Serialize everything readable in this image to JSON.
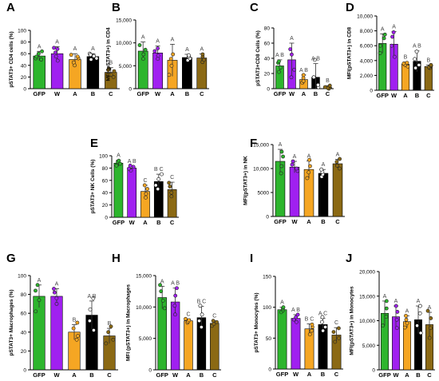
{
  "figure": {
    "colors": {
      "GFP": "#2db52d",
      "W": "#a020f0",
      "A": "#f5a623",
      "B": "#000000",
      "C": "#8b6914",
      "axis": "#000000",
      "letter": "#444444"
    }
  },
  "chart_data": [
    {
      "id": "A",
      "panel_label": "A",
      "type": "bar",
      "ylabel": "pSTAT3+ CD4 cells (%)",
      "ylim": [
        0,
        100
      ],
      "yticks": [
        0,
        20,
        40,
        60,
        80,
        100
      ],
      "ytick_labels": [
        "0",
        "20",
        "40",
        "60",
        "80",
        "100"
      ],
      "categories": [
        "GFP",
        "W",
        "A",
        "B",
        "C"
      ],
      "values": [
        56,
        60,
        50,
        55,
        28
      ],
      "errors": [
        8,
        12,
        10,
        5,
        8
      ],
      "points": [
        [
          50,
          52,
          60,
          64,
          55
        ],
        [
          48,
          55,
          62,
          68,
          70
        ],
        [
          40,
          45,
          52,
          58,
          55
        ],
        [
          50,
          52,
          56,
          60,
          58
        ],
        [
          20,
          24,
          30,
          34,
          32
        ]
      ],
      "sig": [
        "A",
        "A",
        "A",
        "A",
        "B"
      ]
    },
    {
      "id": "B",
      "panel_label": "B",
      "type": "bar",
      "ylabel": "MFI (pSTAT3+) in CD4",
      "ylim": [
        0,
        15000
      ],
      "yticks": [
        0,
        5000,
        10000,
        15000
      ],
      "ytick_labels": [
        "0",
        "5,000",
        "10,000",
        "15,000"
      ],
      "categories": [
        "GFP",
        "W",
        "A",
        "B",
        "C"
      ],
      "values": [
        8200,
        7800,
        6200,
        6800,
        6700
      ],
      "errors": [
        2000,
        1500,
        3500,
        700,
        900
      ],
      "points": [
        [
          6500,
          7500,
          8500,
          9500
        ],
        [
          6500,
          7200,
          8200,
          8800
        ],
        [
          3000,
          5000,
          6500,
          7500
        ],
        [
          6200,
          6600,
          7000,
          7300
        ],
        [
          5800,
          6300,
          7000,
          7500
        ]
      ],
      "sig": [
        "A",
        "A",
        "A",
        "A",
        "A"
      ]
    },
    {
      "id": "C",
      "panel_label": "C",
      "type": "bar",
      "ylabel": "pSTAT3+CD8 Cells (%)",
      "ylim": [
        0,
        80
      ],
      "yticks": [
        0,
        20,
        40,
        60,
        80
      ],
      "ytick_labels": [
        "0",
        "20",
        "40",
        "60",
        "80"
      ],
      "categories": [
        "GFP",
        "W",
        "A",
        "B",
        "C"
      ],
      "values": [
        30,
        38,
        12,
        15,
        2
      ],
      "errors": [
        8,
        22,
        6,
        18,
        2
      ],
      "points": [
        [
          22,
          28,
          34,
          36
        ],
        [
          15,
          25,
          45,
          52
        ],
        [
          8,
          10,
          14,
          18
        ],
        [
          2,
          5,
          15,
          38
        ],
        [
          0,
          1,
          2,
          4
        ]
      ],
      "sig": [
        "A B",
        "A",
        "A B",
        "A B",
        "B"
      ]
    },
    {
      "id": "D",
      "panel_label": "D",
      "type": "bar",
      "ylabel": "MFI(pSTAT3+) in CD8",
      "ylim": [
        0,
        10000
      ],
      "yticks": [
        0,
        2000,
        4000,
        6000,
        8000,
        10000
      ],
      "ytick_labels": [
        "0",
        "2,000",
        "4,000",
        "6,000",
        "8,000",
        "10,000"
      ],
      "categories": [
        "GFP",
        "W",
        "A",
        "B",
        "C"
      ],
      "values": [
        6300,
        6200,
        3500,
        3900,
        3200
      ],
      "errors": [
        1300,
        1700,
        300,
        1400,
        200
      ],
      "points": [
        [
          5000,
          6000,
          7000,
          7500
        ],
        [
          4500,
          6000,
          7200,
          7800
        ],
        [
          3200,
          3400,
          3600,
          3700
        ],
        [
          3000,
          3400,
          4200,
          5200
        ],
        [
          3000,
          3100,
          3300,
          3400
        ]
      ],
      "sig": [
        "A",
        "A",
        "B",
        "A B",
        "B"
      ]
    },
    {
      "id": "E",
      "panel_label": "E",
      "type": "bar",
      "ylabel": "pSTAT3+ NK Cells (%)",
      "ylim": [
        0,
        100
      ],
      "yticks": [
        0,
        20,
        40,
        60,
        80,
        100
      ],
      "ytick_labels": [
        "0",
        "20",
        "40",
        "60",
        "80",
        "100"
      ],
      "categories": [
        "GFP",
        "W",
        "A",
        "B",
        "C"
      ],
      "values": [
        88,
        80,
        42,
        58,
        45
      ],
      "errors": [
        5,
        3,
        10,
        12,
        12
      ],
      "points": [
        [
          84,
          87,
          90,
          92
        ],
        [
          76,
          79,
          82,
          84
        ],
        [
          32,
          38,
          46,
          52
        ],
        [
          46,
          52,
          62,
          70
        ],
        [
          34,
          40,
          50,
          56
        ]
      ],
      "sig": [
        "A",
        "A B",
        "C",
        "B C",
        "C"
      ]
    },
    {
      "id": "F",
      "panel_label": "F",
      "type": "bar",
      "ylabel": "MFI(pSTAT3+) in NK",
      "ylim": [
        0,
        15000
      ],
      "yticks": [
        0,
        5000,
        10000,
        15000
      ],
      "ytick_labels": [
        "0",
        "5000",
        "10,000",
        "15,000"
      ],
      "categories": [
        "GFP",
        "W",
        "A",
        "B",
        "C"
      ],
      "values": [
        11500,
        10300,
        9800,
        9000,
        11000
      ],
      "errors": [
        2500,
        1200,
        1800,
        800,
        900
      ],
      "points": [
        [
          9000,
          10500,
          12500,
          13500
        ],
        [
          9500,
          10000,
          10800,
          11500
        ],
        [
          8000,
          9200,
          10500,
          11800
        ],
        [
          8300,
          8800,
          9300,
          9800
        ],
        [
          10000,
          10600,
          11400,
          12000
        ]
      ],
      "sig": [
        "A",
        "A",
        "A",
        "A",
        "A"
      ]
    },
    {
      "id": "G",
      "panel_label": "G",
      "type": "bar",
      "ylabel": "pSTAT3+ Macrophages (%)",
      "ylim": [
        0,
        100
      ],
      "yticks": [
        0,
        20,
        40,
        60,
        80,
        100
      ],
      "ytick_labels": [
        "0",
        "20",
        "40",
        "60",
        "80",
        "100"
      ],
      "categories": [
        "GFP",
        "W",
        "A",
        "B",
        "C"
      ],
      "values": [
        78,
        78,
        40,
        58,
        36
      ],
      "errors": [
        12,
        8,
        8,
        15,
        8
      ],
      "points": [
        [
          62,
          74,
          84,
          90
        ],
        [
          70,
          76,
          82,
          86
        ],
        [
          32,
          36,
          44,
          50
        ],
        [
          42,
          52,
          64,
          76
        ],
        [
          28,
          32,
          40,
          46
        ]
      ],
      "sig": [
        "A",
        "A",
        "B",
        "A B",
        "B"
      ]
    },
    {
      "id": "H",
      "panel_label": "H",
      "type": "bar",
      "ylabel": "MFI (pSTAT3+) in Macrophages",
      "ylim": [
        0,
        15000
      ],
      "yticks": [
        0,
        5000,
        10000,
        15000
      ],
      "ytick_labels": [
        "0",
        "5,000",
        "10,000",
        "15,000"
      ],
      "categories": [
        "GFP",
        "W",
        "A",
        "B",
        "C"
      ],
      "values": [
        11500,
        10800,
        7800,
        8300,
        7400
      ],
      "errors": [
        1800,
        2200,
        300,
        1800,
        400
      ],
      "points": [
        [
          9800,
          11000,
          12500,
          13500
        ],
        [
          8800,
          10200,
          11800,
          13000
        ],
        [
          7500,
          7700,
          7900,
          8100
        ],
        [
          6800,
          7800,
          8800,
          10200
        ],
        [
          7000,
          7300,
          7600,
          7800
        ]
      ],
      "sig": [
        "A",
        "A B",
        "C",
        "B C",
        "C"
      ]
    },
    {
      "id": "I",
      "panel_label": "I",
      "type": "bar",
      "ylabel": "pSTAT3+ Monocytes (%)",
      "ylim": [
        0,
        150
      ],
      "yticks": [
        0,
        50,
        100,
        150
      ],
      "ytick_labels": [
        "0",
        "50",
        "100",
        "150"
      ],
      "categories": [
        "GFP",
        "W",
        "A",
        "B",
        "C"
      ],
      "values": [
        96,
        82,
        65,
        72,
        55
      ],
      "errors": [
        4,
        6,
        8,
        10,
        12
      ],
      "points": [
        [
          92,
          95,
          98,
          100
        ],
        [
          76,
          80,
          84,
          88
        ],
        [
          56,
          62,
          68,
          72
        ],
        [
          62,
          68,
          76,
          84
        ],
        [
          44,
          50,
          60,
          66
        ]
      ],
      "sig": [
        "A",
        "A B",
        "B C",
        "A C",
        "C"
      ]
    },
    {
      "id": "J",
      "panel_label": "J",
      "type": "bar",
      "ylabel": "MFI(pSTAT3+) in Monocytes",
      "ylim": [
        0,
        20000
      ],
      "yticks": [
        0,
        5000,
        10000,
        15000,
        20000
      ],
      "ytick_labels": [
        "0",
        "5,000",
        "10,000",
        "15,000",
        "20,000"
      ],
      "categories": [
        "GFP",
        "W",
        "A",
        "B",
        "C"
      ],
      "values": [
        11500,
        10800,
        9800,
        10200,
        9200
      ],
      "errors": [
        2500,
        2200,
        1200,
        2800,
        2500
      ],
      "points": [
        [
          9000,
          10800,
          12500,
          14000
        ],
        [
          8500,
          10200,
          11800,
          13000
        ],
        [
          8600,
          9500,
          10200,
          11000
        ],
        [
          7500,
          9000,
          11500,
          13000
        ],
        [
          6500,
          8500,
          10500,
          12000
        ]
      ],
      "sig": [
        "A",
        "A",
        "A",
        "A",
        "A"
      ]
    }
  ]
}
